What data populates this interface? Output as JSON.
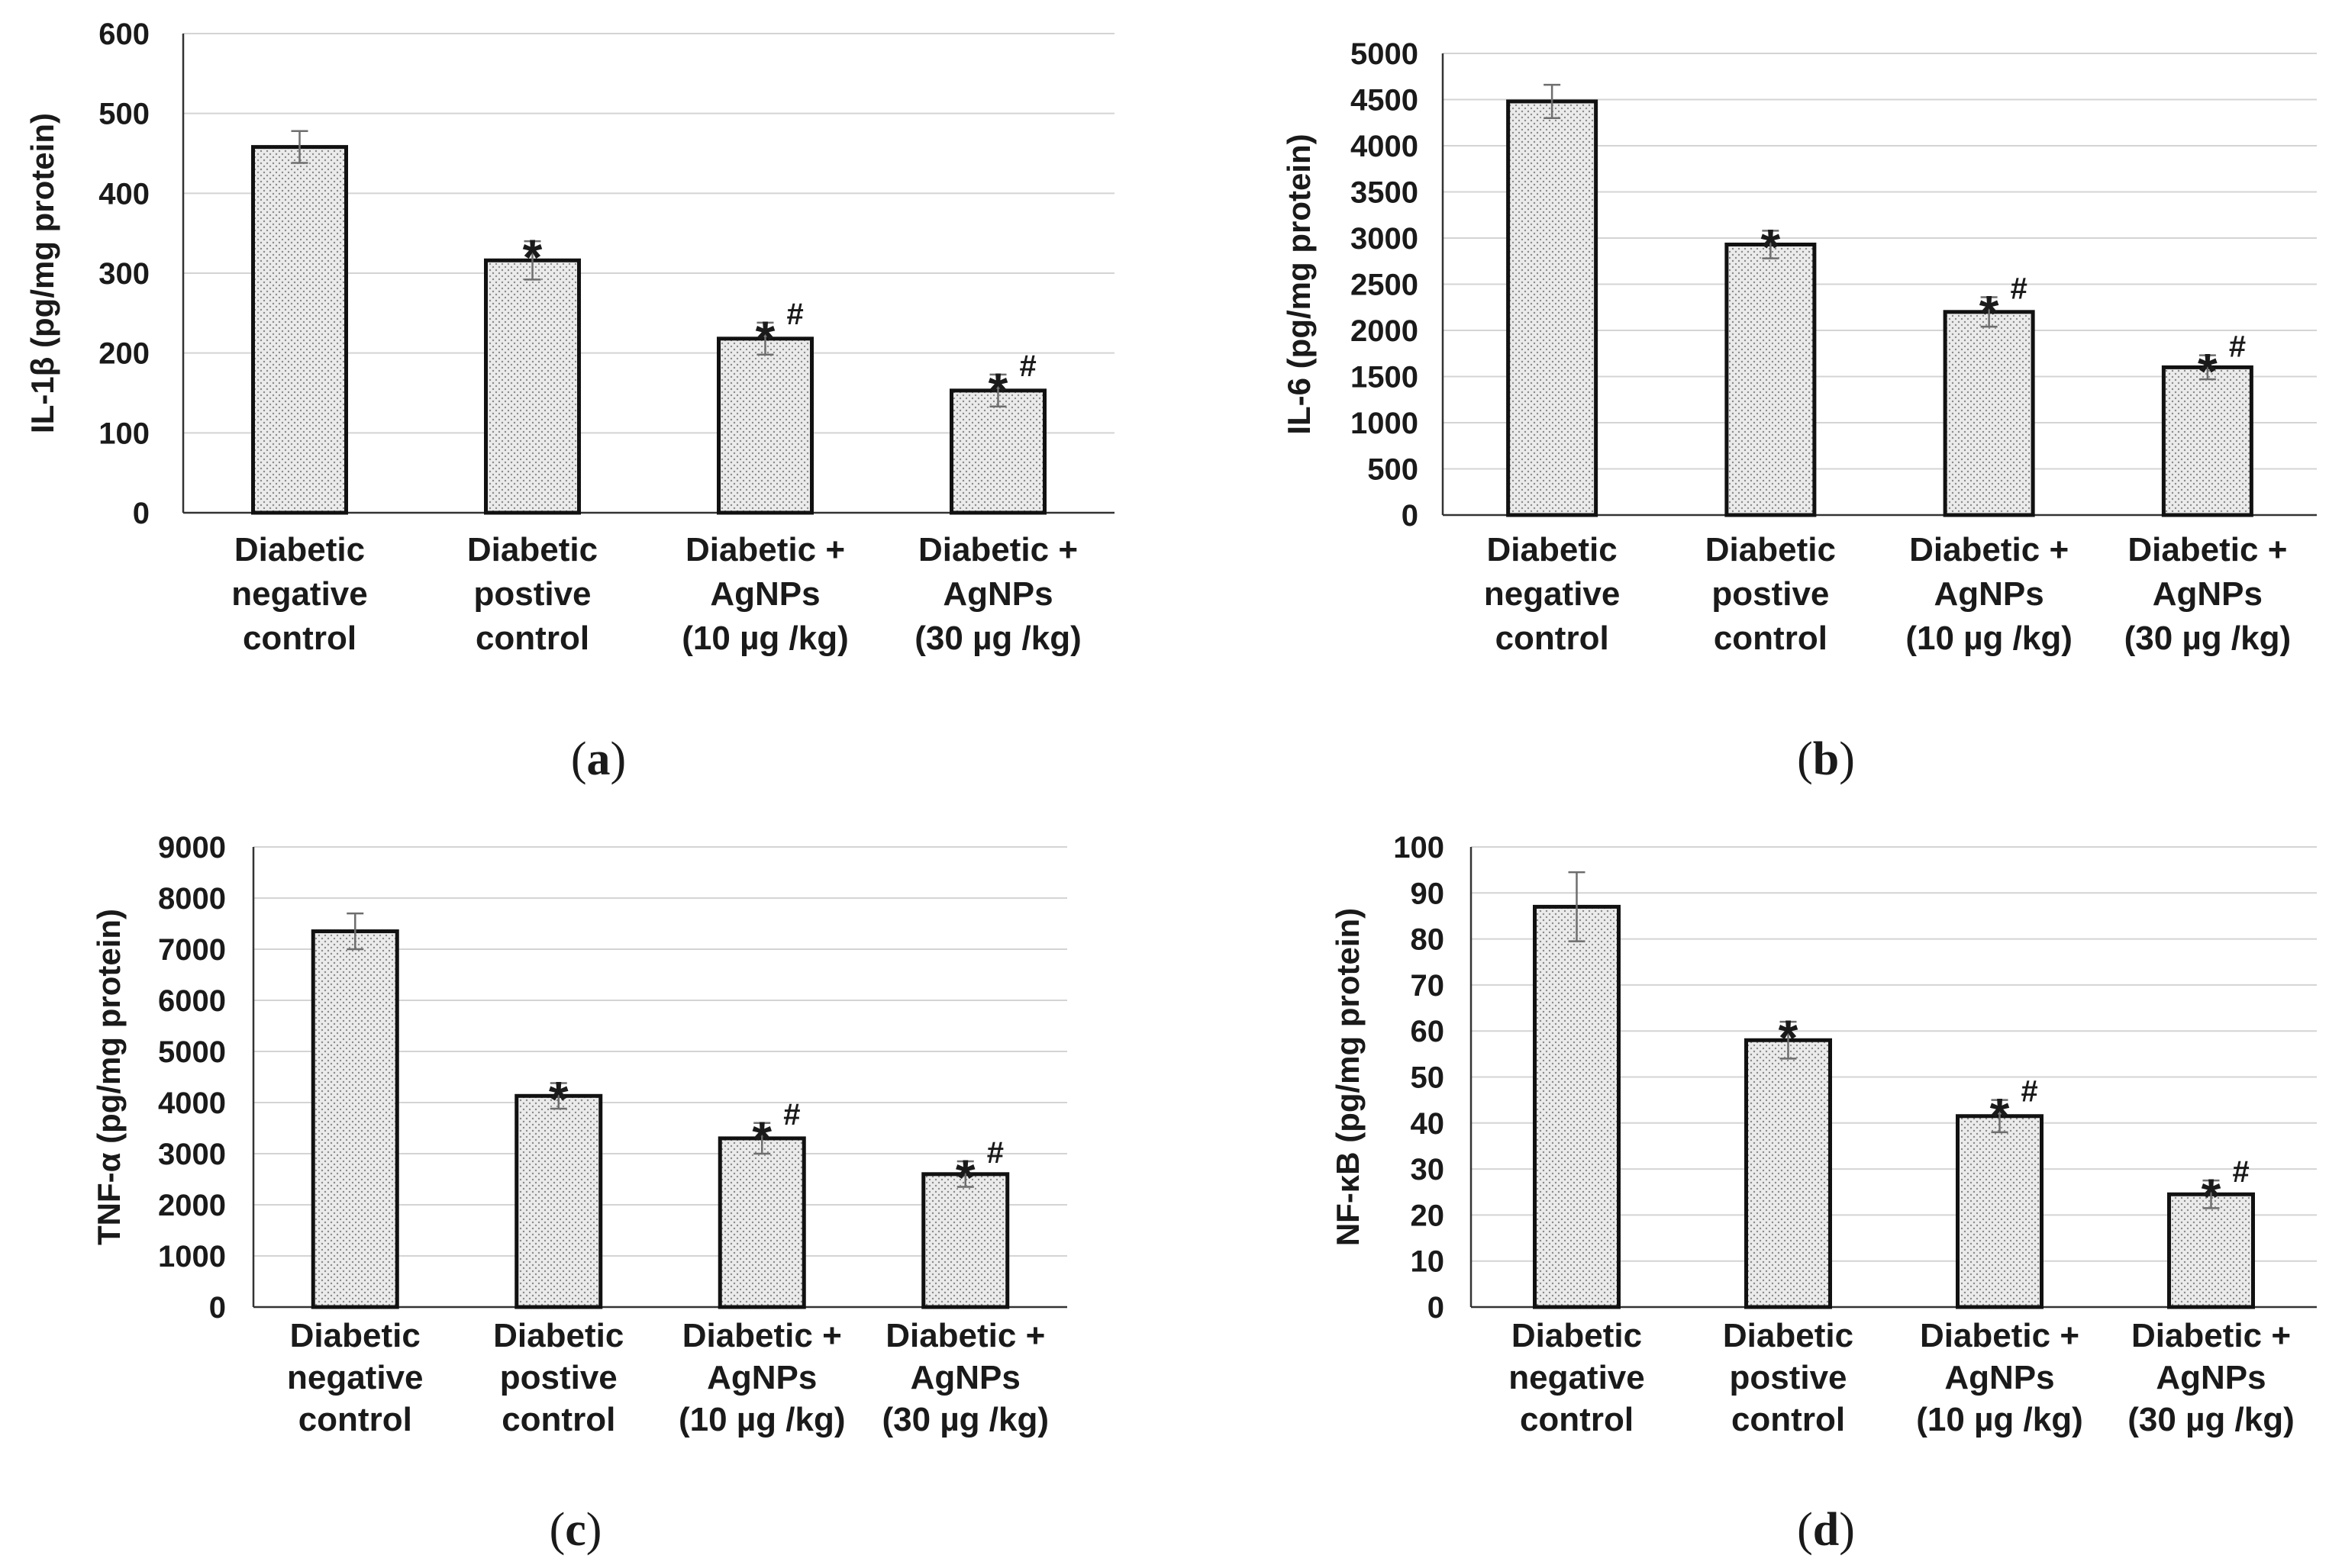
{
  "figure": {
    "categories": [
      [
        "Diabetic",
        "negative",
        "control"
      ],
      [
        "Diabetic",
        "postive",
        "control"
      ],
      [
        "Diabetic +",
        "AgNPs",
        "(10 µg /kg)"
      ],
      [
        "Diabetic +",
        "AgNPs",
        "(30 µg /kg)"
      ]
    ]
  },
  "chart_data": [
    {
      "panel": "a",
      "type": "bar",
      "ylabel": "IL-1β (pg/mg protein)",
      "ylim": [
        0,
        600
      ],
      "yticks": [
        0,
        100,
        200,
        300,
        400,
        500,
        600
      ],
      "values": [
        458,
        316,
        218,
        153
      ],
      "errors": [
        20,
        24,
        20,
        20
      ],
      "annotations": [
        {
          "star": "",
          "hash": ""
        },
        {
          "star": "*",
          "hash": ""
        },
        {
          "star": "*",
          "hash": "#"
        },
        {
          "star": "*",
          "hash": "#"
        }
      ],
      "grid": true
    },
    {
      "panel": "b",
      "type": "bar",
      "ylabel": "IL-6 (pg/mg protein)",
      "ylim": [
        0,
        5000
      ],
      "yticks": [
        0,
        500,
        1000,
        1500,
        2000,
        2500,
        3000,
        3500,
        4000,
        4500,
        5000
      ],
      "values": [
        4480,
        2930,
        2200,
        1600
      ],
      "errors": [
        180,
        150,
        160,
        130
      ],
      "annotations": [
        {
          "star": "",
          "hash": ""
        },
        {
          "star": "*",
          "hash": ""
        },
        {
          "star": "*",
          "hash": "#"
        },
        {
          "star": "*",
          "hash": "#"
        }
      ],
      "grid": true
    },
    {
      "panel": "c",
      "type": "bar",
      "ylabel": "TNF-α (pg/mg protein)",
      "ylim": [
        0,
        9000
      ],
      "yticks": [
        0,
        1000,
        2000,
        3000,
        4000,
        5000,
        6000,
        7000,
        8000,
        9000
      ],
      "values": [
        7350,
        4130,
        3300,
        2600
      ],
      "errors": [
        350,
        250,
        300,
        250
      ],
      "annotations": [
        {
          "star": "",
          "hash": ""
        },
        {
          "star": "*",
          "hash": ""
        },
        {
          "star": "*",
          "hash": "#"
        },
        {
          "star": "*",
          "hash": "#"
        }
      ],
      "grid": true
    },
    {
      "panel": "d",
      "type": "bar",
      "ylabel": "NF-κB (pg/mg protein)",
      "ylim": [
        0,
        100
      ],
      "yticks": [
        0,
        10,
        20,
        30,
        40,
        50,
        60,
        70,
        80,
        90,
        100
      ],
      "values": [
        87,
        58,
        41.5,
        24.5
      ],
      "errors": [
        7.5,
        4,
        3.5,
        3
      ],
      "annotations": [
        {
          "star": "",
          "hash": ""
        },
        {
          "star": "*",
          "hash": ""
        },
        {
          "star": "*",
          "hash": "#"
        },
        {
          "star": "*",
          "hash": "#"
        }
      ],
      "grid": true
    }
  ],
  "colors": {
    "bar_fill": "#ebebeb",
    "bar_dot": "#8a8a8a",
    "bar_stroke": "#111111",
    "grid": "#d4d4d4",
    "axis": "#333333",
    "error_bar": "#6e6e6e"
  }
}
